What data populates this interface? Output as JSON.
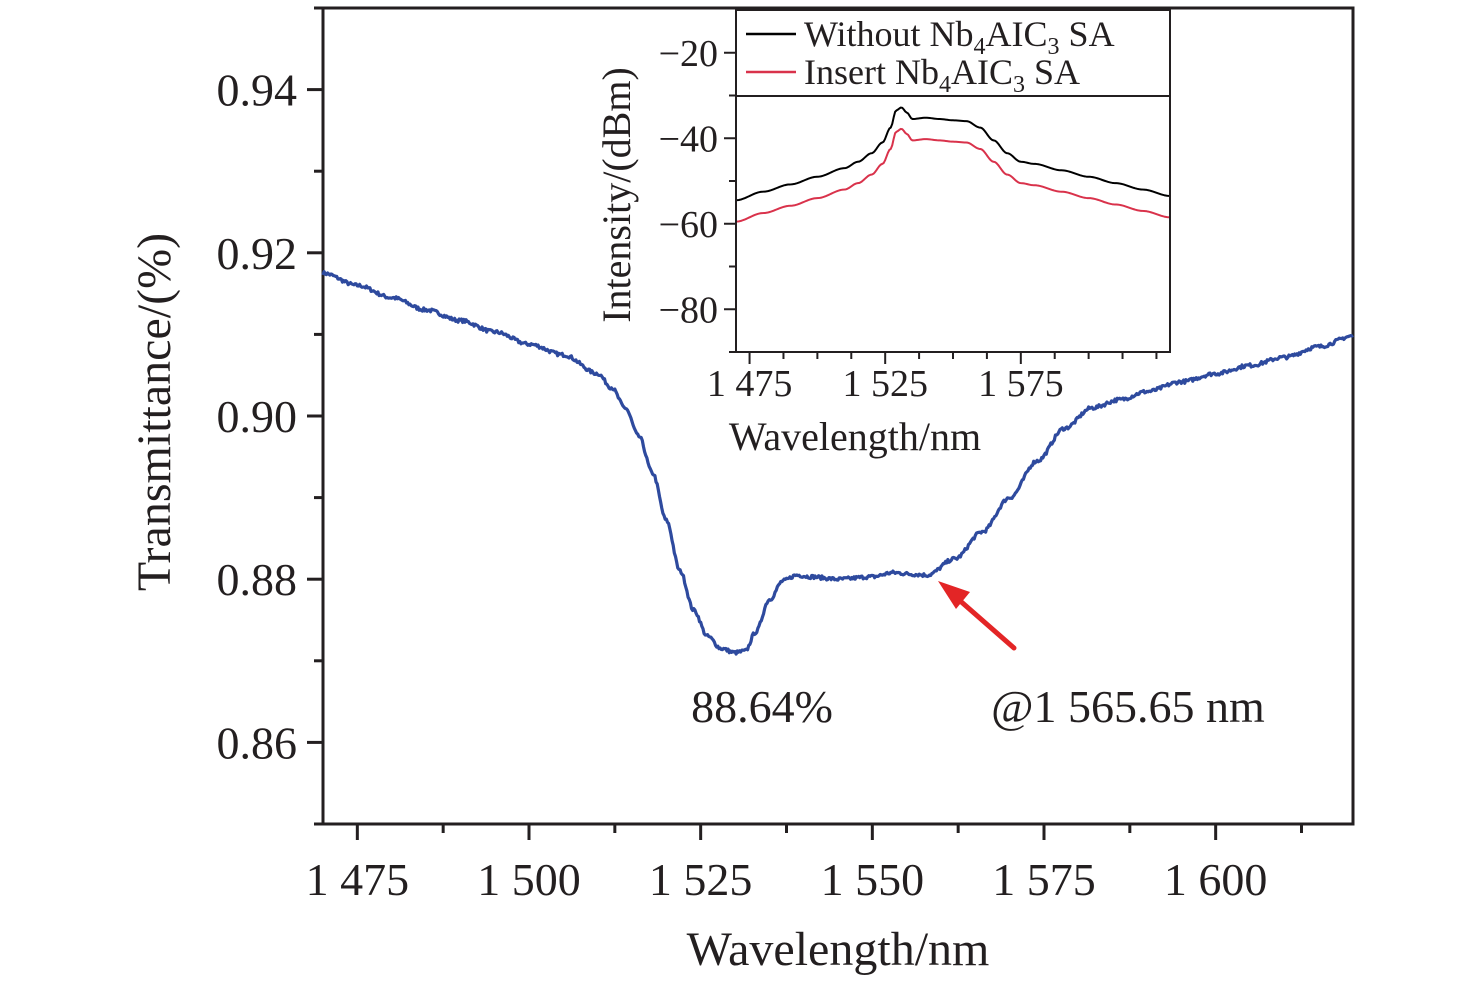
{
  "chart_data": [
    {
      "type": "line",
      "title": "",
      "xlabel": "Wavelength/nm",
      "ylabel": "Transmittance/(%)",
      "xlim": [
        1470,
        1620
      ],
      "ylim": [
        0.85,
        0.95
      ],
      "x_ticks": [
        1475,
        1500,
        1525,
        1550,
        1575,
        1600
      ],
      "x_tick_labels": [
        "1 475",
        "1 500",
        "1 525",
        "1 550",
        "1 575",
        "1 600"
      ],
      "y_ticks": [
        0.86,
        0.88,
        0.9,
        0.92,
        0.94
      ],
      "y_tick_labels": [
        "0.86",
        "0.88",
        "0.90",
        "0.92",
        "0.94"
      ],
      "grid": false,
      "series": [
        {
          "color": "#2e4a9e",
          "x": [
            1470,
            1475,
            1480,
            1485,
            1490,
            1495,
            1500,
            1505,
            1510,
            1512,
            1514,
            1516,
            1518,
            1520,
            1522,
            1524,
            1526,
            1528,
            1530,
            1531.5,
            1533,
            1535,
            1537,
            1539,
            1541,
            1545,
            1550,
            1553,
            1556,
            1558,
            1562,
            1566,
            1570,
            1574,
            1578,
            1582,
            1586,
            1590,
            1595,
            1600,
            1605,
            1610,
            1615,
            1620
          ],
          "y": [
            0.9175,
            0.916,
            0.9145,
            0.913,
            0.9117,
            0.9103,
            0.9088,
            0.9075,
            0.9052,
            0.9035,
            0.901,
            0.8975,
            0.893,
            0.8872,
            0.881,
            0.8762,
            0.873,
            0.8715,
            0.871,
            0.8712,
            0.8735,
            0.8775,
            0.8798,
            0.8805,
            0.8803,
            0.88,
            0.8803,
            0.8808,
            0.8806,
            0.8805,
            0.8825,
            0.8858,
            0.89,
            0.8945,
            0.8985,
            0.901,
            0.902,
            0.903,
            0.9042,
            0.9052,
            0.9062,
            0.9072,
            0.9085,
            0.9098
          ]
        }
      ],
      "annotations": [
        {
          "text": "88.64%",
          "color": "#e32526"
        },
        {
          "text": "@1 565.65 nm",
          "color": "#e32526"
        }
      ],
      "arrow_color": "#e32526"
    },
    {
      "type": "line",
      "title": "",
      "xlabel": "Wavelength/nm",
      "ylabel": "Intensity/(dBm)",
      "xlim": [
        1470,
        1630
      ],
      "ylim": [
        -90,
        -10
      ],
      "x_ticks": [
        1475,
        1525,
        1575
      ],
      "x_tick_labels": [
        "1 475",
        "1 525",
        "1 575"
      ],
      "y_ticks": [
        -80,
        -60,
        -40,
        -20
      ],
      "y_tick_labels": [
        "−80",
        "−60",
        "−40",
        "−20"
      ],
      "grid": false,
      "legend_position": "top",
      "series": [
        {
          "name": "Without Nb4AIC3 SA",
          "legend_main": "Without Nb",
          "legend_sub1": "4",
          "legend_mid": "AIC",
          "legend_sub2": "3",
          "legend_tail": " SA",
          "color": "#000000",
          "x": [
            1470,
            1480,
            1490,
            1500,
            1510,
            1515,
            1520,
            1524,
            1527,
            1529,
            1531,
            1533,
            1535,
            1540,
            1545,
            1550,
            1555,
            1560,
            1565,
            1570,
            1575,
            1580,
            1590,
            1600,
            1610,
            1620,
            1630
          ],
          "y": [
            -54.5,
            -52.5,
            -50.8,
            -49.0,
            -47.0,
            -45.5,
            -43.5,
            -41.0,
            -37.5,
            -33.5,
            -32.8,
            -34.0,
            -35.5,
            -35.2,
            -35.5,
            -35.8,
            -36.0,
            -37.5,
            -40.5,
            -43.5,
            -45.5,
            -46.0,
            -47.5,
            -49.0,
            -50.5,
            -52.0,
            -53.5
          ]
        },
        {
          "name": "Insert Nb4AIC3 SA",
          "legend_main": "Insert Nb",
          "legend_sub1": "4",
          "legend_mid": "AIC",
          "legend_sub2": "3",
          "legend_tail": " SA",
          "color": "#d9324b",
          "x": [
            1470,
            1480,
            1490,
            1500,
            1510,
            1515,
            1520,
            1524,
            1527,
            1529,
            1531,
            1533,
            1535,
            1540,
            1545,
            1550,
            1555,
            1560,
            1565,
            1570,
            1575,
            1580,
            1590,
            1600,
            1610,
            1620,
            1630
          ],
          "y": [
            -59.5,
            -57.5,
            -55.8,
            -54.0,
            -52.0,
            -50.5,
            -48.5,
            -46.0,
            -42.5,
            -38.5,
            -37.8,
            -39.0,
            -40.5,
            -40.2,
            -40.5,
            -40.8,
            -41.0,
            -42.5,
            -45.5,
            -48.5,
            -50.5,
            -51.0,
            -52.5,
            -54.0,
            -55.5,
            -57.0,
            -58.5
          ]
        }
      ]
    }
  ]
}
